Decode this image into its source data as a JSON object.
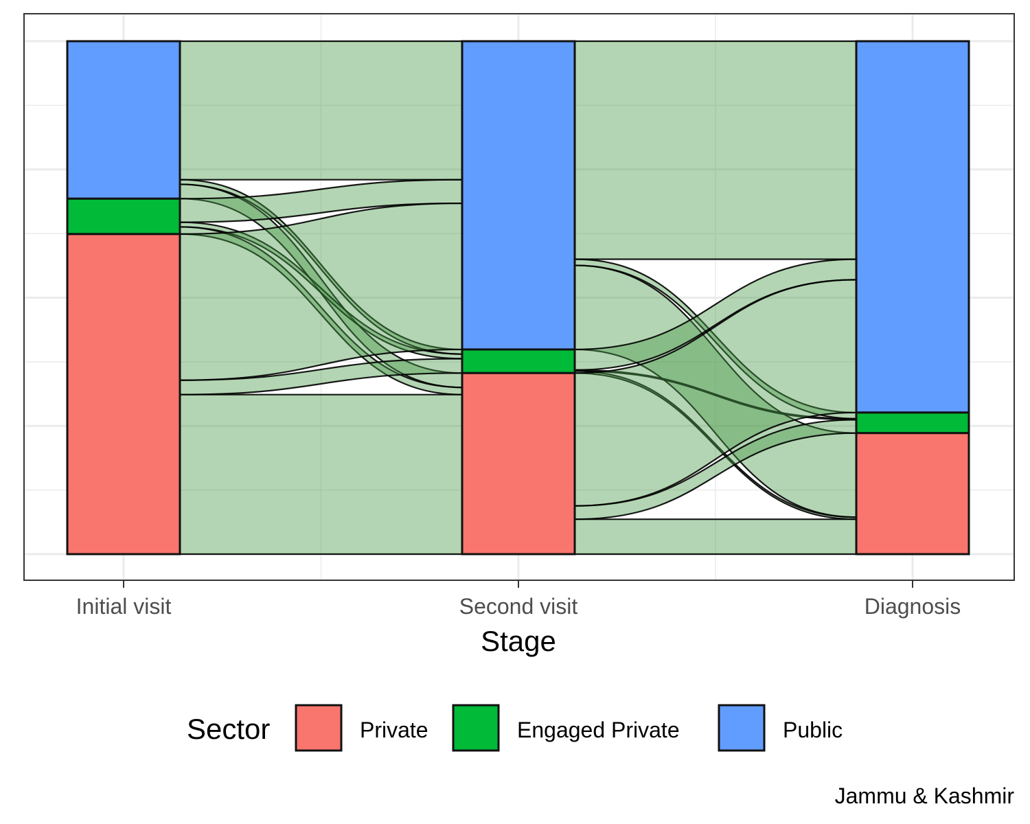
{
  "chart_data": {
    "type": "alluvial",
    "stages": [
      "Initial visit",
      "Second visit",
      "Diagnosis"
    ],
    "xlabel": "Stage",
    "caption": "Jammu & Kashmir",
    "legend": {
      "title": "Sector",
      "position": "bottom",
      "items": [
        {
          "name": "Private",
          "color": "#F8766D"
        },
        {
          "name": "Engaged Private",
          "color": "#00BA38"
        },
        {
          "name": "Public",
          "color": "#619CFF"
        }
      ]
    },
    "ylim": [
      -0.05,
      1.03
    ],
    "grid": true,
    "stage_proportions": [
      {
        "stage": "Initial visit",
        "Private": 0.624,
        "Engaged Private": 0.069,
        "Public": 0.307
      },
      {
        "stage": "Second visit",
        "Private": 0.353,
        "Engaged Private": 0.046,
        "Public": 0.601
      },
      {
        "stage": "Diagnosis",
        "Private": 0.236,
        "Engaged Private": 0.04,
        "Public": 0.724
      }
    ],
    "flows": [
      {
        "from_stage": "Initial visit",
        "to_stage": "Second visit",
        "from": "Public",
        "to": "Public",
        "value": 0.27
      },
      {
        "from_stage": "Initial visit",
        "to_stage": "Second visit",
        "from": "Public",
        "to": "Engaged Private",
        "value": 0.009
      },
      {
        "from_stage": "Initial visit",
        "to_stage": "Second visit",
        "from": "Public",
        "to": "Private",
        "value": 0.028
      },
      {
        "from_stage": "Initial visit",
        "to_stage": "Second visit",
        "from": "Engaged Private",
        "to": "Public",
        "value": 0.046
      },
      {
        "from_stage": "Initial visit",
        "to_stage": "Second visit",
        "from": "Engaged Private",
        "to": "Engaged Private",
        "value": 0.009
      },
      {
        "from_stage": "Initial visit",
        "to_stage": "Second visit",
        "from": "Engaged Private",
        "to": "Private",
        "value": 0.014
      },
      {
        "from_stage": "Initial visit",
        "to_stage": "Second visit",
        "from": "Private",
        "to": "Public",
        "value": 0.285
      },
      {
        "from_stage": "Initial visit",
        "to_stage": "Second visit",
        "from": "Private",
        "to": "Engaged Private",
        "value": 0.028
      },
      {
        "from_stage": "Initial visit",
        "to_stage": "Second visit",
        "from": "Private",
        "to": "Private",
        "value": 0.311
      },
      {
        "from_stage": "Second visit",
        "to_stage": "Diagnosis",
        "from": "Public",
        "to": "Public",
        "value": 0.425
      },
      {
        "from_stage": "Second visit",
        "to_stage": "Diagnosis",
        "from": "Public",
        "to": "Engaged Private",
        "value": 0.012
      },
      {
        "from_stage": "Second visit",
        "to_stage": "Diagnosis",
        "from": "Public",
        "to": "Private",
        "value": 0.164
      },
      {
        "from_stage": "Second visit",
        "to_stage": "Diagnosis",
        "from": "Engaged Private",
        "to": "Public",
        "value": 0.04
      },
      {
        "from_stage": "Second visit",
        "to_stage": "Diagnosis",
        "from": "Engaged Private",
        "to": "Engaged Private",
        "value": 0.002
      },
      {
        "from_stage": "Second visit",
        "to_stage": "Diagnosis",
        "from": "Engaged Private",
        "to": "Private",
        "value": 0.004
      },
      {
        "from_stage": "Second visit",
        "to_stage": "Diagnosis",
        "from": "Private",
        "to": "Public",
        "value": 0.259
      },
      {
        "from_stage": "Second visit",
        "to_stage": "Diagnosis",
        "from": "Private",
        "to": "Engaged Private",
        "value": 0.026
      },
      {
        "from_stage": "Second visit",
        "to_stage": "Diagnosis",
        "from": "Private",
        "to": "Private",
        "value": 0.068
      }
    ],
    "flow_color": "#4A9A4A"
  }
}
